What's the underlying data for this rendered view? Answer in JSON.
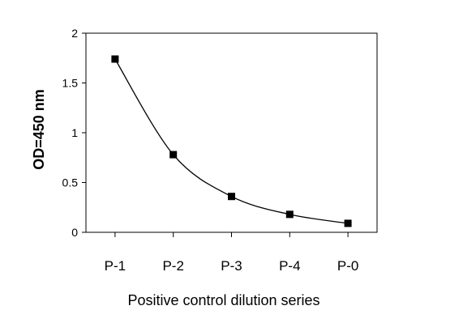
{
  "chart_data": {
    "type": "line",
    "categories": [
      "P-1",
      "P-2",
      "P-3",
      "P-4",
      "P-0"
    ],
    "series": [
      {
        "values": [
          1.74,
          0.78,
          0.36,
          0.18,
          0.09
        ]
      }
    ],
    "xlabel": "Positive control dilution series",
    "ylabel": "OD=450 nm",
    "ylim": [
      0,
      2
    ],
    "yticks": [
      "0",
      "0.5",
      "1",
      "1.5",
      "2"
    ],
    "grid": false,
    "legend": "none",
    "smooth": true,
    "marker": "square",
    "line_color": "#000000",
    "marker_color": "#000000"
  }
}
